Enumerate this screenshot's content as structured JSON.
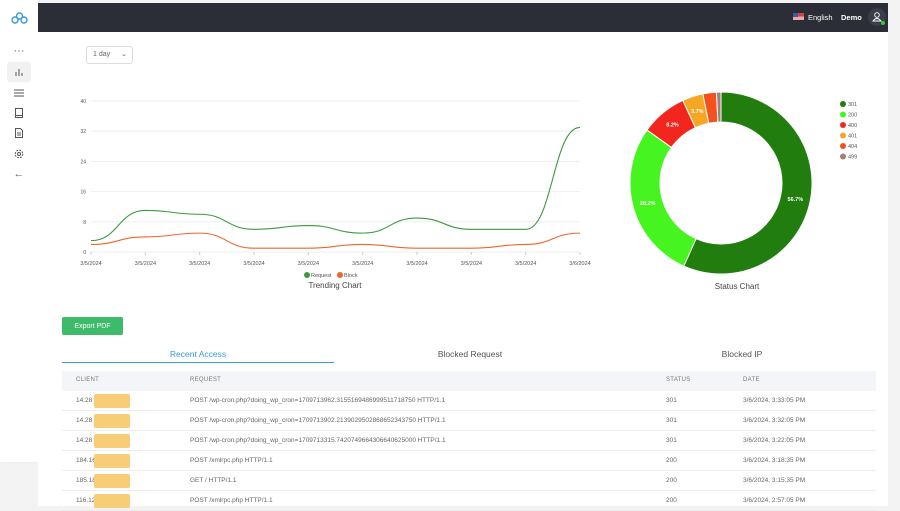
{
  "sidebar": {
    "items": [
      {
        "icon": "more-icon"
      },
      {
        "icon": "bar-chart-icon",
        "active": true
      },
      {
        "icon": "list-icon"
      },
      {
        "icon": "book-icon"
      },
      {
        "icon": "document-icon"
      },
      {
        "icon": "gear-icon"
      },
      {
        "icon": "arrow-left-icon"
      }
    ]
  },
  "header": {
    "language": "English",
    "user": "Demo"
  },
  "filter": {
    "range": "1 day"
  },
  "chart_data": [
    {
      "type": "line",
      "title": "Trending Chart",
      "categories": [
        "3/5/2024",
        "3/5/2024",
        "3/5/2024",
        "3/5/2024",
        "3/5/2024",
        "3/5/2024",
        "3/5/2024",
        "3/5/2024",
        "3/5/2024",
        "3/6/2024"
      ],
      "yticks": [
        "0",
        "8",
        "16",
        "24",
        "32",
        "40"
      ],
      "ylim": [
        0,
        40
      ],
      "grid": true,
      "legend": "bottom",
      "series": [
        {
          "name": "Request",
          "color": "#3b9a3b",
          "values": [
            3,
            11,
            10,
            6,
            7,
            5,
            9,
            6,
            6,
            33
          ]
        },
        {
          "name": "Block",
          "color": "#f0642d",
          "values": [
            2,
            4,
            5,
            1,
            1,
            2,
            1,
            1,
            2,
            5
          ]
        }
      ]
    },
    {
      "type": "pie",
      "title": "Status Chart",
      "legend": "right",
      "donut": true,
      "slices": [
        {
          "label": "301",
          "value": 56.7,
          "text": "56.7%",
          "color": "#217d0e"
        },
        {
          "label": "200",
          "value": 28.2,
          "text": "28.2%",
          "color": "#46f51f"
        },
        {
          "label": "400",
          "value": 8.2,
          "text": "8.2%",
          "color": "#f2261f"
        },
        {
          "label": "401",
          "value": 3.7,
          "text": "3.7%",
          "color": "#f5a623"
        },
        {
          "label": "404",
          "value": 2.4,
          "text": "",
          "color": "#f4511e"
        },
        {
          "label": "499",
          "value": 0.8,
          "text": "",
          "color": "#a1807a"
        }
      ]
    }
  ],
  "export_label": "Export PDF",
  "tabs": [
    {
      "label": "Recent Access",
      "active": true
    },
    {
      "label": "Blocked Request"
    },
    {
      "label": "Blocked IP"
    }
  ],
  "table": {
    "headers": [
      "CLIENT",
      "REQUEST",
      "STATUS",
      "DATE"
    ],
    "rows": [
      {
        "client": "14.28",
        "request": "POST /wp-cron.php?doing_wp_cron=1709713962.3155169486999511718750 HTTP/1.1",
        "status": "301",
        "date": "3/6/2024, 3:33:05 PM"
      },
      {
        "client": "14.28",
        "request": "POST /wp-cron.php?doing_wp_cron=1709713902.2139029502868652343750 HTTP/1.1",
        "status": "301",
        "date": "3/6/2024, 3:32:05 PM"
      },
      {
        "client": "14.28",
        "request": "POST /wp-cron.php?doing_wp_cron=1709713315.7420749664306640625000 HTTP/1.1",
        "status": "301",
        "date": "3/6/2024, 3:22:05 PM"
      },
      {
        "client": "184.16",
        "request": "POST /xmlrpc.php HTTP/1.1",
        "status": "200",
        "date": "3/6/2024, 3:18:35 PM"
      },
      {
        "client": "185.18",
        "request": "GET / HTTP/1.1",
        "status": "200",
        "date": "3/6/2024, 3:15:35 PM"
      },
      {
        "client": "116.12",
        "request": "POST /xmlrpc.php HTTP/1.1",
        "status": "200",
        "date": "3/6/2024, 2:57:05 PM"
      }
    ]
  }
}
